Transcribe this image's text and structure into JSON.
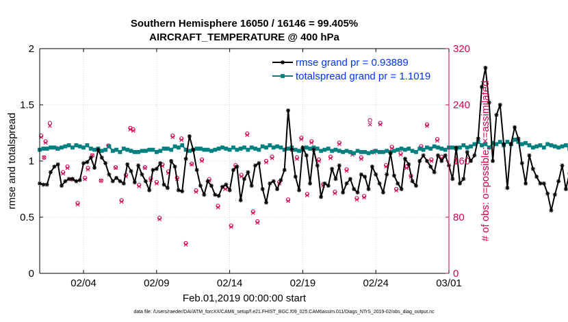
{
  "chart_data": {
    "type": "line",
    "title": [
      "Southern Hemisphere 16050 / 16146 = 99.405%",
      "AIRCRAFT_TEMPERATURE @ 400 hPa"
    ],
    "xlabel": "Feb.01,2019 00:00:00 start",
    "ylabel_left": "rmse and totalspread",
    "ylabel_right": "# of obs: o=possible; ×=assimilated",
    "footnote": "data file: /Users/raeder/DAI/ATM_forcXX/CAM6_setup/f.e21.FHIST_BGC.f09_025.CAM6assim.011/Diags_NTrS_2019-02/obs_diag_output.nc",
    "x_ticks": [
      "02/04",
      "02/09",
      "02/14",
      "02/19",
      "02/24",
      "03/01"
    ],
    "x_tick_days": [
      3,
      8,
      13,
      18,
      23,
      28
    ],
    "xlim_days": [
      0,
      28
    ],
    "ylim_left": [
      0,
      2
    ],
    "y_ticks_left": [
      "0",
      "0.5",
      "1",
      "1.5",
      "2"
    ],
    "ylim_right": [
      0,
      320
    ],
    "y_ticks_right": [
      "0",
      "80",
      "160",
      "240",
      "320"
    ],
    "legend_placement": "top-right",
    "grid": true,
    "colors": {
      "rmse": "#000000",
      "spread": "#008080",
      "obs": "#d4004f",
      "right_axis": "#d4004f",
      "legend_text": "#0033ff"
    },
    "series": [
      {
        "name": "rmse grand pr = 0.93889",
        "step_days": 0.25,
        "values": [
          0.8,
          0.79,
          0.79,
          0.9,
          0.95,
          0.97,
          0.78,
          0.82,
          0.84,
          0.84,
          0.82,
          0.83,
          0.98,
          0.99,
          1.03,
          0.94,
          1.1,
          1.03,
          0.98,
          0.88,
          0.82,
          0.85,
          0.82,
          0.8,
          0.97,
          0.91,
          0.81,
          0.96,
          0.88,
          0.82,
          0.74,
          0.92,
          0.93,
          0.98,
          0.79,
          0.76,
          1.0,
          0.95,
          0.74,
          0.73,
          1.02,
          1.22,
          1.1,
          0.92,
          0.78,
          0.7,
          0.82,
          0.78,
          0.7,
          0.69,
          0.77,
          0.79,
          0.74,
          0.92,
          0.95,
          0.65,
          0.84,
          0.9,
          0.78,
          0.96,
          0.98,
          0.75,
          0.63,
          0.8,
          0.82,
          0.75,
          0.83,
          0.92,
          1.45,
          1.1,
          0.86,
          0.74,
          1.12,
          1.05,
          0.8,
          1.1,
          0.96,
          0.68,
          0.8,
          0.78,
          0.93,
          0.84,
          0.96,
          0.72,
          0.8,
          0.84,
          0.75,
          0.72,
          0.88,
          0.86,
          0.75,
          0.95,
          0.88,
          0.8,
          0.72,
          0.88,
          1.07,
          0.87,
          0.8,
          0.75,
          1.02,
          0.97,
          0.82,
          0.78,
          1.0,
          1.05,
          1.0,
          0.95,
          0.9,
          1.05,
          1.0,
          1.05,
          0.96,
          0.84,
          1.12,
          0.8,
          0.84,
          1.08,
          1.0,
          1.05,
          1.2,
          1.66,
          1.83,
          1.52,
          1.0,
          1.41,
          1.5,
          1.15,
          0.76,
          1.15,
          1.3,
          1.2,
          0.98,
          0.8,
          1.05,
          0.93,
          0.86,
          0.8,
          0.8,
          0.71,
          0.56,
          0.7,
          0.82,
          0.96,
          0.75,
          0.89,
          0.93,
          0.76,
          0.68,
          0.72,
          0.76,
          0.78,
          0.8,
          0.8,
          0.74
        ]
      },
      {
        "name": "totalspread grand pr = 1.1019",
        "step_days": 0.25,
        "values": [
          1.1,
          1.11,
          1.11,
          1.12,
          1.12,
          1.11,
          1.12,
          1.13,
          1.14,
          1.12,
          1.14,
          1.13,
          1.12,
          1.14,
          1.11,
          1.1,
          1.11,
          1.09,
          1.1,
          1.13,
          1.09,
          1.1,
          1.08,
          1.11,
          1.1,
          1.09,
          1.08,
          1.08,
          1.09,
          1.09,
          1.1,
          1.1,
          1.08,
          1.09,
          1.11,
          1.11,
          1.1,
          1.13,
          1.12,
          1.14,
          1.1,
          1.09,
          1.1,
          1.11,
          1.11,
          1.1,
          1.1,
          1.09,
          1.1,
          1.11,
          1.12,
          1.11,
          1.1,
          1.12,
          1.1,
          1.11,
          1.12,
          1.1,
          1.12,
          1.11,
          1.1,
          1.13,
          1.12,
          1.14,
          1.12,
          1.13,
          1.12,
          1.1,
          1.11,
          1.12,
          1.1,
          1.09,
          1.1,
          1.12,
          1.11,
          1.12,
          1.11,
          1.09,
          1.1,
          1.11,
          1.09,
          1.1,
          1.09,
          1.08,
          1.09,
          1.08,
          1.07,
          1.09,
          1.08,
          1.08,
          1.07,
          1.08,
          1.09,
          1.08,
          1.08,
          1.09,
          1.08,
          1.09,
          1.1,
          1.11,
          1.1,
          1.11,
          1.09,
          1.08,
          1.11,
          1.1,
          1.12,
          1.11,
          1.13,
          1.12,
          1.11,
          1.1,
          1.12,
          1.12,
          1.11,
          1.12,
          1.14,
          1.12,
          1.13,
          1.15,
          1.17,
          1.14,
          1.15,
          1.12,
          1.16,
          1.15,
          1.17,
          1.14,
          1.17,
          1.15,
          1.19,
          1.17,
          1.15,
          1.16,
          1.14,
          1.12,
          1.13,
          1.14,
          1.12,
          1.15,
          1.14,
          1.13,
          1.12,
          1.13,
          1.14,
          1.11,
          1.1,
          1.13,
          1.11,
          1.14,
          1.13,
          1.11,
          1.12,
          1.09,
          1.1,
          1.09,
          1.08
        ]
      }
    ],
    "obs_possible": [
      [
        0.1,
        196
      ],
      [
        0.3,
        165
      ],
      [
        0.4,
        188
      ],
      [
        0.7,
        214
      ],
      [
        1.2,
        178
      ],
      [
        1.6,
        144
      ],
      [
        1.9,
        152
      ],
      [
        2.2,
        134
      ],
      [
        2.6,
        100
      ],
      [
        3.1,
        136
      ],
      [
        3.3,
        150
      ],
      [
        3.6,
        168
      ],
      [
        4.2,
        132
      ],
      [
        4.7,
        182
      ],
      [
        5.2,
        151
      ],
      [
        5.6,
        104
      ],
      [
        5.9,
        140
      ],
      [
        6.2,
        207
      ],
      [
        6.4,
        205
      ],
      [
        6.8,
        126
      ],
      [
        7.2,
        151
      ],
      [
        7.6,
        135
      ],
      [
        8.0,
        130
      ],
      [
        8.2,
        79
      ],
      [
        8.4,
        155
      ],
      [
        8.8,
        145
      ],
      [
        9.1,
        196
      ],
      [
        9.4,
        136
      ],
      [
        9.7,
        192
      ],
      [
        10.0,
        43
      ],
      [
        10.4,
        156
      ],
      [
        10.7,
        118
      ],
      [
        11.1,
        162
      ],
      [
        11.6,
        134
      ],
      [
        12.2,
        96
      ],
      [
        12.7,
        122
      ],
      [
        13.1,
        68
      ],
      [
        13.4,
        154
      ],
      [
        13.8,
        140
      ],
      [
        14.2,
        199
      ],
      [
        14.6,
        88
      ],
      [
        14.9,
        74
      ],
      [
        15.5,
        160
      ],
      [
        15.9,
        166
      ],
      [
        16.4,
        130
      ],
      [
        17.0,
        105
      ],
      [
        17.6,
        165
      ],
      [
        17.9,
        193
      ],
      [
        18.3,
        113
      ],
      [
        18.6,
        188
      ],
      [
        19.1,
        162
      ],
      [
        19.4,
        127
      ],
      [
        19.9,
        166
      ],
      [
        20.2,
        116
      ],
      [
        20.5,
        186
      ],
      [
        21.0,
        148
      ],
      [
        21.4,
        171
      ],
      [
        21.7,
        107
      ],
      [
        22.0,
        165
      ],
      [
        22.2,
        110
      ],
      [
        22.6,
        218
      ],
      [
        22.9,
        174
      ],
      [
        23.3,
        214
      ],
      [
        23.7,
        154
      ],
      [
        24.1,
        180
      ],
      [
        24.4,
        120
      ],
      [
        24.7,
        171
      ],
      [
        25.1,
        152
      ],
      [
        25.4,
        139
      ],
      [
        26.1,
        181
      ],
      [
        26.5,
        212
      ],
      [
        26.8,
        162
      ],
      [
        27.2,
        191
      ],
      [
        27.5,
        166
      ]
    ],
    "obs_assimilated": [
      [
        0.1,
        194
      ],
      [
        0.3,
        165
      ],
      [
        0.4,
        186
      ],
      [
        0.7,
        210
      ],
      [
        1.2,
        177
      ],
      [
        1.6,
        142
      ],
      [
        1.9,
        150
      ],
      [
        2.2,
        134
      ],
      [
        2.6,
        98
      ],
      [
        3.1,
        134
      ],
      [
        3.3,
        148
      ],
      [
        3.6,
        168
      ],
      [
        4.2,
        132
      ],
      [
        4.7,
        180
      ],
      [
        5.2,
        150
      ],
      [
        5.6,
        102
      ],
      [
        5.9,
        138
      ],
      [
        6.2,
        205
      ],
      [
        6.4,
        203
      ],
      [
        6.8,
        124
      ],
      [
        7.2,
        150
      ],
      [
        7.6,
        133
      ],
      [
        8.0,
        128
      ],
      [
        8.2,
        77
      ],
      [
        8.4,
        153
      ],
      [
        8.8,
        143
      ],
      [
        9.1,
        194
      ],
      [
        9.4,
        134
      ],
      [
        9.7,
        190
      ],
      [
        10.0,
        41
      ],
      [
        10.4,
        155
      ],
      [
        10.7,
        116
      ],
      [
        11.1,
        160
      ],
      [
        11.6,
        132
      ],
      [
        12.2,
        94
      ],
      [
        12.7,
        120
      ],
      [
        13.1,
        66
      ],
      [
        13.4,
        152
      ],
      [
        13.8,
        138
      ],
      [
        14.2,
        197
      ],
      [
        14.6,
        86
      ],
      [
        14.9,
        72
      ],
      [
        15.5,
        158
      ],
      [
        15.9,
        164
      ],
      [
        16.4,
        128
      ],
      [
        17.0,
        103
      ],
      [
        17.6,
        163
      ],
      [
        17.9,
        191
      ],
      [
        18.3,
        111
      ],
      [
        18.6,
        186
      ],
      [
        19.1,
        160
      ],
      [
        19.4,
        125
      ],
      [
        19.9,
        164
      ],
      [
        20.2,
        114
      ],
      [
        20.5,
        184
      ],
      [
        21.0,
        146
      ],
      [
        21.4,
        169
      ],
      [
        21.7,
        105
      ],
      [
        22.0,
        163
      ],
      [
        22.2,
        108
      ],
      [
        22.6,
        212
      ],
      [
        22.9,
        172
      ],
      [
        23.3,
        212
      ],
      [
        23.7,
        152
      ],
      [
        24.1,
        178
      ],
      [
        24.4,
        118
      ],
      [
        24.7,
        169
      ],
      [
        25.1,
        150
      ],
      [
        25.4,
        137
      ],
      [
        26.1,
        179
      ],
      [
        26.5,
        210
      ],
      [
        26.8,
        160
      ],
      [
        27.2,
        189
      ],
      [
        27.5,
        164
      ]
    ]
  }
}
